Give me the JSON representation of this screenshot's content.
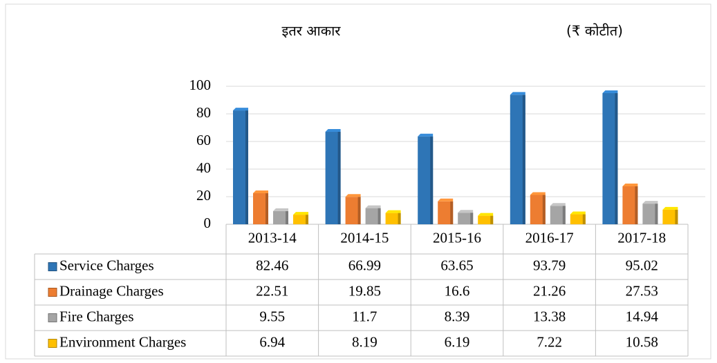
{
  "chart_data": {
    "type": "bar",
    "title": "इतर आकार",
    "subtitle": "(₹ कोटीत)",
    "categories": [
      "2013-14",
      "2014-15",
      "2015-16",
      "2016-17",
      "2017-18"
    ],
    "series": [
      {
        "name": "Service Charges",
        "color": "#2e75b6",
        "values": [
          82.46,
          66.99,
          63.65,
          93.79,
          95.02
        ]
      },
      {
        "name": "Drainage Charges",
        "color": "#ed7d31",
        "values": [
          22.51,
          19.85,
          16.6,
          21.26,
          27.53
        ]
      },
      {
        "name": "Fire Charges",
        "color": "#a5a5a5",
        "values": [
          9.55,
          11.7,
          8.39,
          13.38,
          14.94
        ]
      },
      {
        "name": "Environment Charges",
        "color": "#ffc000",
        "values": [
          6.94,
          8.19,
          6.19,
          7.22,
          10.58
        ]
      }
    ],
    "ylim": [
      0,
      100
    ],
    "yticks": [
      0,
      20,
      40,
      60,
      80,
      100
    ],
    "grid": true
  }
}
